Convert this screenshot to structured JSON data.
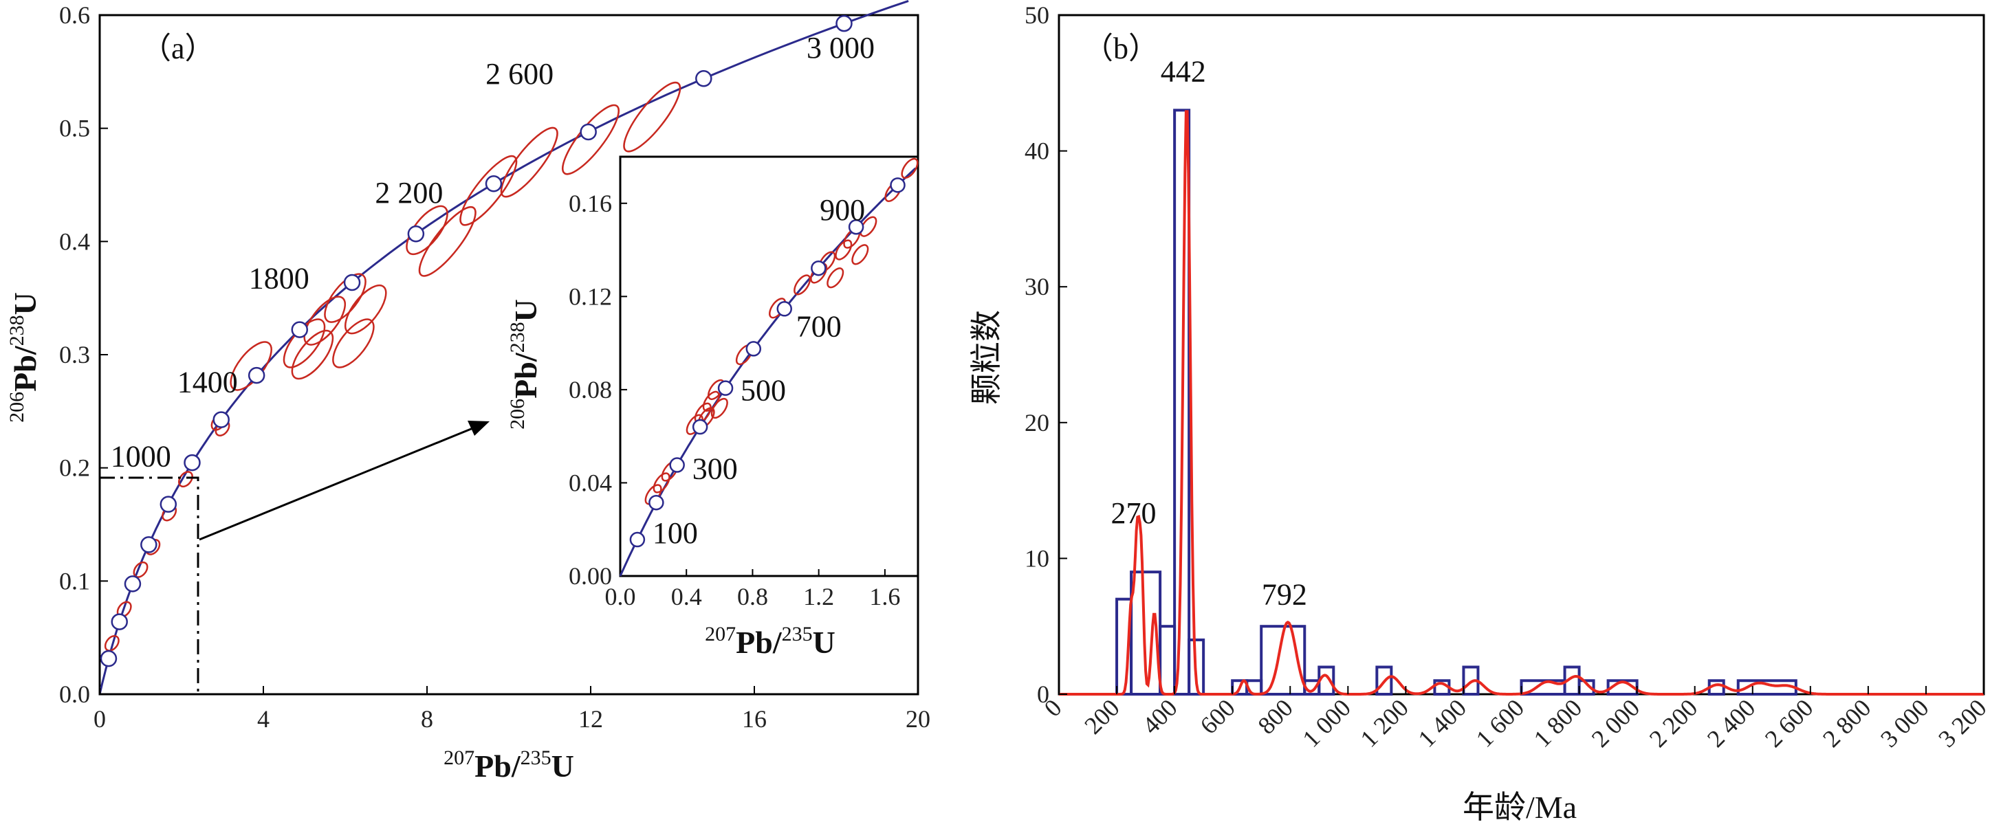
{
  "chart_data": [
    {
      "type": "scatter",
      "panel_label": "（a）",
      "xlim": [
        0,
        20
      ],
      "ylim": [
        0,
        0.6
      ],
      "xticks": [
        "0",
        "4",
        "8",
        "12",
        "16",
        "20"
      ],
      "yticks": [
        "0.0",
        "0.1",
        "0.2",
        "0.3",
        "0.4",
        "0.5",
        "0.6"
      ],
      "xlabel_parts": {
        "sup1": "207",
        "base1": "Pb/",
        "sup2": "235",
        "base2": "U"
      },
      "ylabel_parts": {
        "sup1": "206",
        "base1": "Pb/",
        "sup2": "238",
        "base2": "U"
      },
      "concordia_age_labels": [
        {
          "text": "1000",
          "age": 1000
        },
        {
          "text": "1400",
          "age": 1400
        },
        {
          "text": "1800",
          "age": 1800
        },
        {
          "text": "2 200",
          "age": 2200
        },
        {
          "text": "2 600",
          "age": 2600
        },
        {
          "text": "3 000",
          "age": 3000
        }
      ],
      "concordia_markers_age": [
        200,
        400,
        600,
        800,
        1000,
        1200,
        1400,
        1600,
        1800,
        2000,
        2200,
        2400,
        2600,
        2800,
        3000
      ],
      "ellipses": [
        {
          "x": 0.3,
          "y": 0.045
        },
        {
          "x": 0.6,
          "y": 0.075
        },
        {
          "x": 1.0,
          "y": 0.11
        },
        {
          "x": 1.3,
          "y": 0.13
        },
        {
          "x": 1.7,
          "y": 0.16
        },
        {
          "x": 2.1,
          "y": 0.19
        },
        {
          "x": 2.9,
          "y": 0.24
        },
        {
          "x": 3.0,
          "y": 0.235
        },
        {
          "x": 3.7,
          "y": 0.29
        },
        {
          "x": 5.0,
          "y": 0.31
        },
        {
          "x": 5.2,
          "y": 0.3
        },
        {
          "x": 5.5,
          "y": 0.33
        },
        {
          "x": 6.0,
          "y": 0.35
        },
        {
          "x": 6.5,
          "y": 0.34
        },
        {
          "x": 6.2,
          "y": 0.31
        },
        {
          "x": 8.0,
          "y": 0.41
        },
        {
          "x": 8.5,
          "y": 0.4
        },
        {
          "x": 9.5,
          "y": 0.445
        },
        {
          "x": 10.5,
          "y": 0.47
        },
        {
          "x": 12.0,
          "y": 0.49
        },
        {
          "x": 13.5,
          "y": 0.51
        }
      ],
      "inset": {
        "xlim": [
          0,
          1.8
        ],
        "ylim": [
          0,
          0.18
        ],
        "xticks": [
          "0.0",
          "0.4",
          "0.8",
          "1.2",
          "1.6"
        ],
        "yticks": [
          "0.00",
          "0.04",
          "0.08",
          "0.12",
          "0.16"
        ],
        "age_labels": [
          {
            "text": "100",
            "age": 100
          },
          {
            "text": "300",
            "age": 300
          },
          {
            "text": "500",
            "age": 500
          },
          {
            "text": "700",
            "age": 700
          },
          {
            "text": "900",
            "age": 900
          }
        ],
        "markers_age": [
          100,
          200,
          300,
          400,
          500,
          600,
          700,
          800,
          900,
          1000
        ],
        "ellipses": [
          {
            "x": 0.2,
            "y": 0.035
          },
          {
            "x": 0.25,
            "y": 0.04
          },
          {
            "x": 0.3,
            "y": 0.045
          },
          {
            "x": 0.45,
            "y": 0.065
          },
          {
            "x": 0.5,
            "y": 0.07
          },
          {
            "x": 0.55,
            "y": 0.075
          },
          {
            "x": 0.52,
            "y": 0.068
          },
          {
            "x": 0.58,
            "y": 0.08
          },
          {
            "x": 0.6,
            "y": 0.072
          },
          {
            "x": 0.75,
            "y": 0.095
          },
          {
            "x": 0.95,
            "y": 0.115
          },
          {
            "x": 1.1,
            "y": 0.125
          },
          {
            "x": 1.2,
            "y": 0.13
          },
          {
            "x": 1.25,
            "y": 0.135
          },
          {
            "x": 1.3,
            "y": 0.128
          },
          {
            "x": 1.35,
            "y": 0.14
          },
          {
            "x": 1.4,
            "y": 0.145
          },
          {
            "x": 1.45,
            "y": 0.138
          },
          {
            "x": 1.5,
            "y": 0.15
          },
          {
            "x": 1.65,
            "y": 0.165
          },
          {
            "x": 1.75,
            "y": 0.175
          }
        ]
      }
    },
    {
      "type": "bar",
      "panel_label": "（b）",
      "xlabel": "年龄/Ma",
      "ylabel": "颗粒数",
      "xlim": [
        0,
        3200
      ],
      "ylim": [
        0,
        50
      ],
      "xticks": [
        "0",
        "200",
        "400",
        "600",
        "800",
        "1 000",
        "1 200",
        "1 400",
        "1 600",
        "1 800",
        "2 000",
        "2 200",
        "2 400",
        "2 600",
        "2 800",
        "3 000",
        "3 200"
      ],
      "xtick_values": [
        0,
        200,
        400,
        600,
        800,
        1000,
        1200,
        1400,
        1600,
        1800,
        2000,
        2200,
        2400,
        2600,
        2800,
        3000,
        3200
      ],
      "yticks": [
        "0",
        "10",
        "20",
        "30",
        "40",
        "50"
      ],
      "ytick_values": [
        0,
        10,
        20,
        30,
        40,
        50
      ],
      "peak_labels": [
        {
          "text": "270",
          "x": 270,
          "y": 11.5
        },
        {
          "text": "442",
          "x": 442,
          "y": 44
        },
        {
          "text": "792",
          "x": 792,
          "y": 5.5
        }
      ],
      "bins": [
        {
          "from": 200,
          "to": 250,
          "count": 7
        },
        {
          "from": 250,
          "to": 350,
          "count": 9
        },
        {
          "from": 350,
          "to": 400,
          "count": 5
        },
        {
          "from": 400,
          "to": 450,
          "count": 43
        },
        {
          "from": 450,
          "to": 500,
          "count": 4
        },
        {
          "from": 600,
          "to": 650,
          "count": 1
        },
        {
          "from": 650,
          "to": 700,
          "count": 1
        },
        {
          "from": 700,
          "to": 850,
          "count": 5
        },
        {
          "from": 850,
          "to": 900,
          "count": 1
        },
        {
          "from": 900,
          "to": 950,
          "count": 2
        },
        {
          "from": 1100,
          "to": 1150,
          "count": 2
        },
        {
          "from": 1300,
          "to": 1350,
          "count": 1
        },
        {
          "from": 1400,
          "to": 1450,
          "count": 2
        },
        {
          "from": 1600,
          "to": 1750,
          "count": 1
        },
        {
          "from": 1750,
          "to": 1800,
          "count": 2
        },
        {
          "from": 1800,
          "to": 1850,
          "count": 1
        },
        {
          "from": 1900,
          "to": 2000,
          "count": 1
        },
        {
          "from": 2250,
          "to": 2300,
          "count": 1
        },
        {
          "from": 2350,
          "to": 2550,
          "count": 1
        }
      ],
      "kde_peaks": [
        {
          "age": 250,
          "height": 6.5,
          "width": 9
        },
        {
          "age": 270,
          "height": 10.5,
          "width": 8
        },
        {
          "age": 285,
          "height": 9.5,
          "width": 8
        },
        {
          "age": 330,
          "height": 6,
          "width": 10
        },
        {
          "age": 442,
          "height": 43.5,
          "width": 12
        },
        {
          "age": 640,
          "height": 1,
          "width": 12
        },
        {
          "age": 792,
          "height": 5.3,
          "width": 28
        },
        {
          "age": 920,
          "height": 1.4,
          "width": 22
        },
        {
          "age": 1150,
          "height": 1.3,
          "width": 30
        },
        {
          "age": 1320,
          "height": 0.8,
          "width": 30
        },
        {
          "age": 1440,
          "height": 1.0,
          "width": 30
        },
        {
          "age": 1690,
          "height": 0.9,
          "width": 35
        },
        {
          "age": 1790,
          "height": 1.3,
          "width": 35
        },
        {
          "age": 1950,
          "height": 0.9,
          "width": 35
        },
        {
          "age": 2280,
          "height": 0.7,
          "width": 35
        },
        {
          "age": 2420,
          "height": 0.8,
          "width": 40
        },
        {
          "age": 2520,
          "height": 0.6,
          "width": 40
        }
      ],
      "colors": {
        "bar_stroke": "#2b2a8c",
        "kde": "#e8281f"
      }
    }
  ],
  "colors": {
    "concordia": "#2b2a8c",
    "ellipse": "#c8281f",
    "axis": "#000000"
  }
}
